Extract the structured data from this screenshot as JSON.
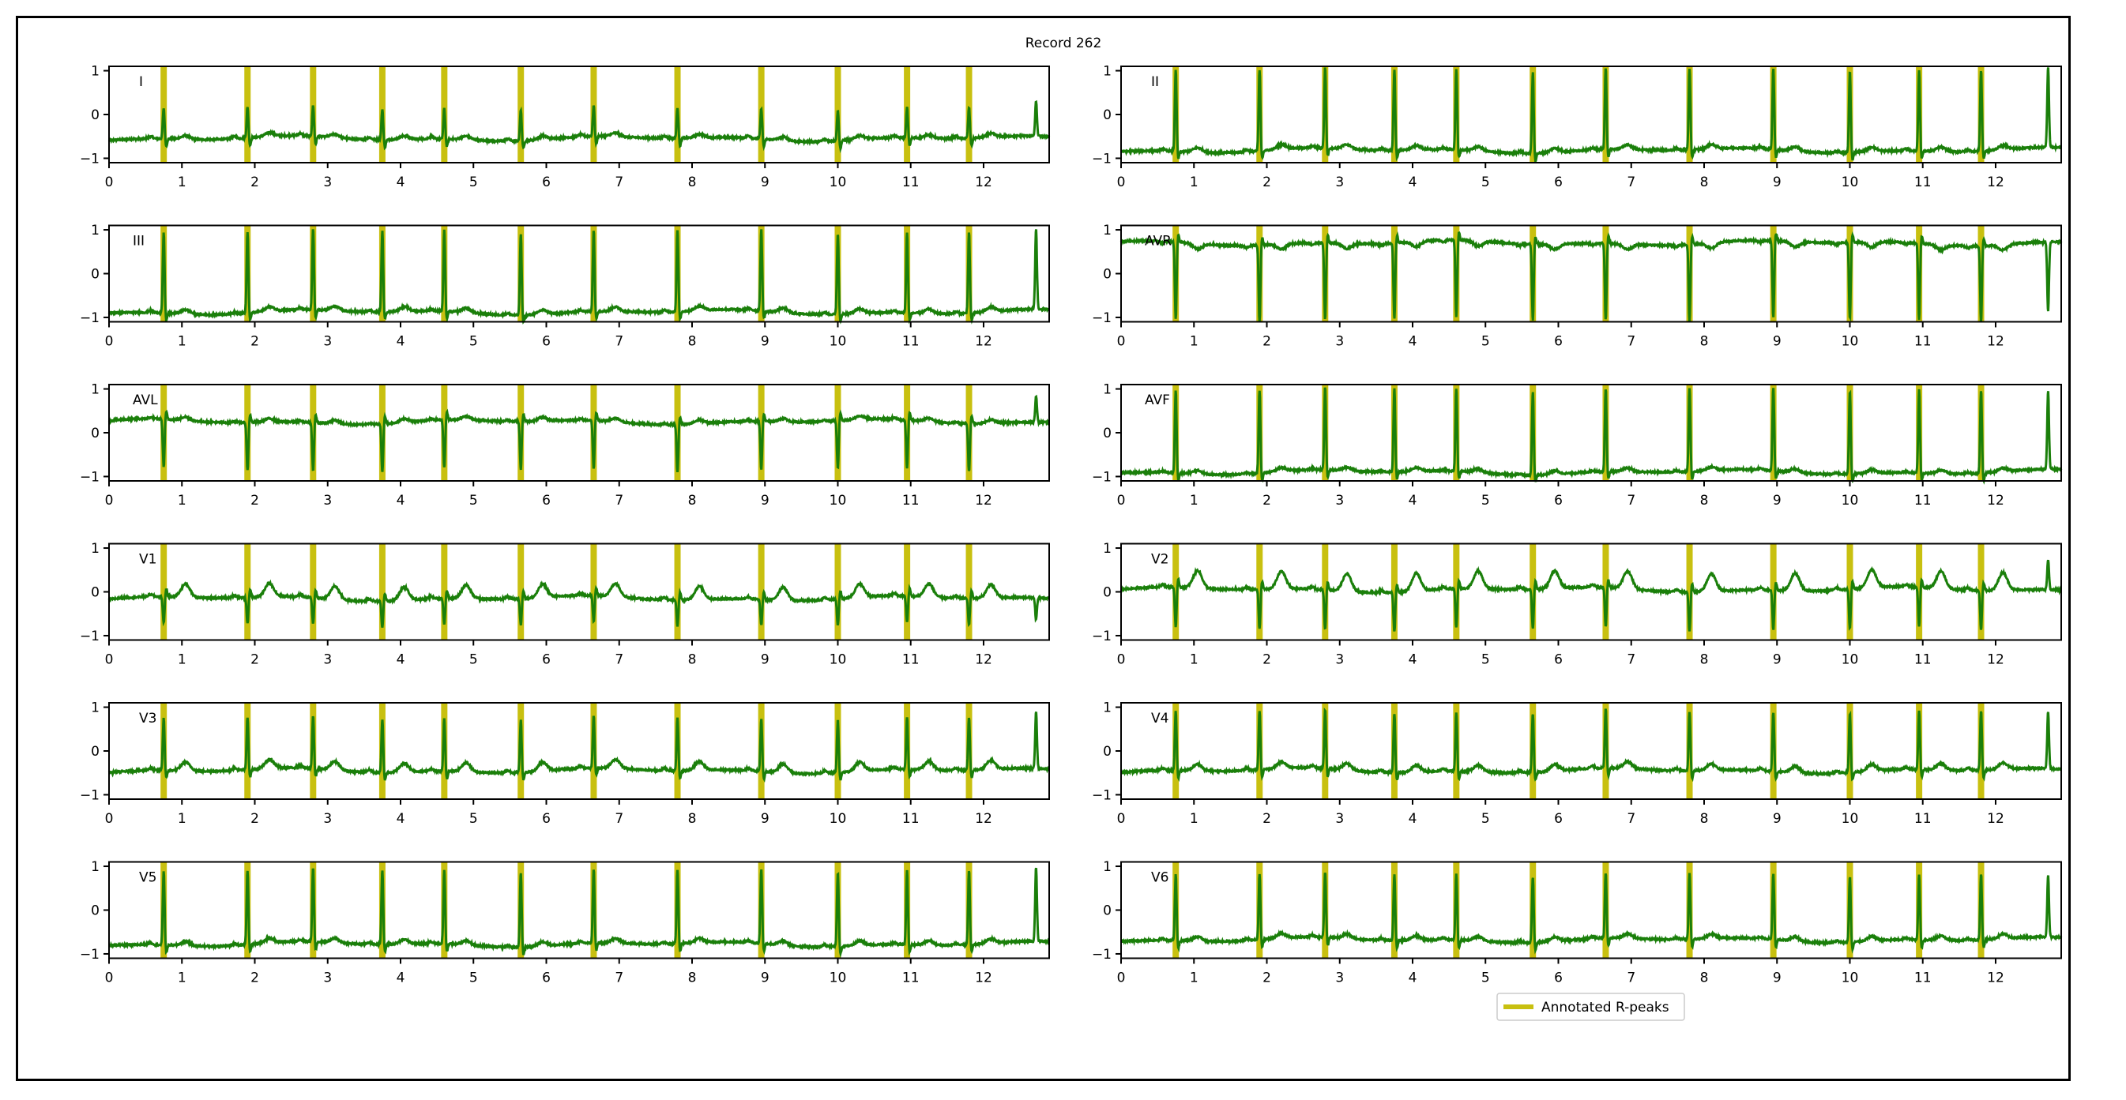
{
  "chart_data": {
    "type": "line",
    "title": "Record 262",
    "colors": {
      "signal": "#1a7f0a",
      "rpeak": "#c8c010",
      "axis": "#000000"
    },
    "layout": {
      "columns": 2,
      "rows": 6
    },
    "xlim": [
      0,
      12.9
    ],
    "ylim": [
      -1.1,
      1.1
    ],
    "xticks": [
      0,
      1,
      2,
      3,
      4,
      5,
      6,
      7,
      8,
      9,
      10,
      11,
      12
    ],
    "yticks": [
      -1,
      0,
      1
    ],
    "grid": false,
    "legend": {
      "placement": "bottom-center",
      "entries": [
        "Annotated R-peaks"
      ]
    },
    "r_peaks": [
      0.75,
      1.9,
      2.8,
      3.75,
      4.6,
      5.65,
      6.65,
      7.8,
      8.95,
      10.0,
      10.95,
      11.8
    ],
    "leads": [
      {
        "name": "I",
        "baseline": -0.55,
        "amp": 0.7,
        "t": 0.08,
        "p": 0.05,
        "tail": 0.8
      },
      {
        "name": "II",
        "baseline": -0.82,
        "amp": 1.85,
        "t": 0.1,
        "p": 0.04,
        "tail": 1.85
      },
      {
        "name": "III",
        "baseline": -0.88,
        "amp": 1.85,
        "t": 0.1,
        "p": 0.04,
        "tail": 1.85
      },
      {
        "name": "AVR",
        "baseline": 0.7,
        "amp": -1.75,
        "t": -0.12,
        "p": -0.04,
        "tail": -1.6
      },
      {
        "name": "AVL",
        "baseline": 0.25,
        "amp": -1.1,
        "t": 0.08,
        "p": 0.03,
        "tail": 0.6
      },
      {
        "name": "AVF",
        "baseline": -0.9,
        "amp": 1.9,
        "t": 0.08,
        "p": 0.03,
        "tail": 1.8
      },
      {
        "name": "V1",
        "baseline": -0.15,
        "amp": -0.6,
        "t": 0.3,
        "p": 0.05,
        "tail": -0.5
      },
      {
        "name": "V2",
        "baseline": 0.05,
        "amp": -0.9,
        "t": 0.4,
        "p": 0.05,
        "tail": 0.7
      },
      {
        "name": "V3",
        "baseline": -0.45,
        "amp": 1.2,
        "t": 0.2,
        "p": 0.05,
        "tail": 1.3
      },
      {
        "name": "V4",
        "baseline": -0.45,
        "amp": 1.35,
        "t": 0.15,
        "p": 0.05,
        "tail": 1.3
      },
      {
        "name": "V5",
        "baseline": -0.78,
        "amp": 1.7,
        "t": 0.1,
        "p": 0.04,
        "tail": 1.7
      },
      {
        "name": "V6",
        "baseline": -0.68,
        "amp": 1.5,
        "t": 0.1,
        "p": 0.04,
        "tail": 1.4
      }
    ]
  }
}
